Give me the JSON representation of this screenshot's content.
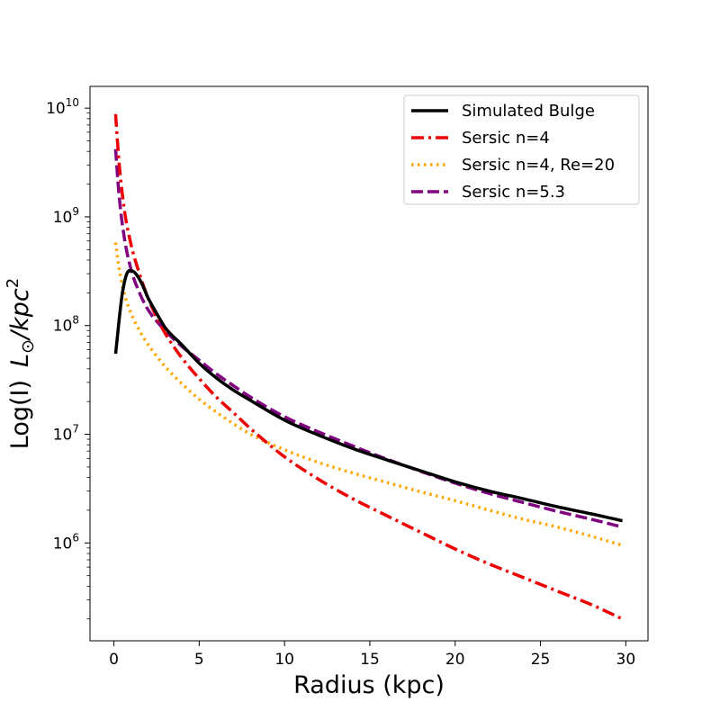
{
  "chart_data": {
    "type": "line",
    "xlabel": "Radius (kpc)",
    "ylabel_prefix": "Log(I)",
    "ylabel_unit_L": "L",
    "ylabel_unit_sub": "⊙",
    "ylabel_unit_rest": "/kpc",
    "ylabel_unit_sup": "2",
    "xlim": [
      -1.4,
      31.3
    ],
    "ylim_log10": [
      5.1,
      10.2
    ],
    "y_scale": "log",
    "grid": false,
    "legend_position": "top-right",
    "x_ticks": [
      0,
      5,
      10,
      15,
      20,
      25,
      30
    ],
    "x_tick_labels": [
      "0",
      "5",
      "10",
      "15",
      "20",
      "25",
      "30"
    ],
    "y_ticks_log10": [
      6,
      7,
      8,
      9,
      10
    ],
    "y_tick_base": "10",
    "y_tick_exps": [
      "6",
      "7",
      "8",
      "9",
      "10"
    ],
    "series": [
      {
        "name": "Simulated Bulge",
        "color": "#000000",
        "dash": "solid",
        "x": [
          0.1,
          0.5,
          0.9,
          1.2,
          1.6,
          2,
          2.5,
          3,
          4,
          5,
          6,
          7,
          8,
          10,
          12,
          14,
          16,
          18,
          20,
          22,
          24,
          26,
          28,
          29.8
        ],
        "y": [
          55000000,
          200000000,
          320000000,
          310000000,
          250000000,
          180000000,
          130000000,
          96000000,
          66000000,
          45000000,
          33000000,
          25500000,
          20500000,
          13500000,
          9800000,
          7400000,
          5800000,
          4600000,
          3650000,
          3000000,
          2550000,
          2150000,
          1850000,
          1600000
        ]
      },
      {
        "name": "Sersic n=4",
        "color": "#ee0000",
        "dash": "dashdot",
        "x": [
          0.1,
          0.3,
          0.6,
          1,
          1.5,
          2,
          2.5,
          3,
          4,
          5,
          6,
          7,
          8,
          10,
          12,
          14,
          16,
          18,
          20,
          22,
          24,
          26,
          28,
          29.8
        ],
        "y": [
          8800000000,
          3200000000,
          1200000000,
          560000000,
          300000000,
          180000000,
          120000000,
          85000000,
          50000000,
          32500000,
          22000000,
          15800000,
          11300000,
          6200000,
          3850000,
          2550000,
          1780000,
          1250000,
          880000,
          640000,
          480000,
          360000,
          270000,
          200000
        ]
      },
      {
        "name": "Sersic n=4, Re=20",
        "color": "#ffa500",
        "dash": "dotted",
        "x": [
          0.1,
          0.3,
          0.6,
          1,
          1.5,
          2,
          3,
          4,
          5,
          6,
          7,
          8,
          10,
          12,
          14,
          16,
          18,
          20,
          22,
          24,
          26,
          28,
          29.8
        ],
        "y": [
          580000000,
          340000000,
          200000000,
          130000000,
          90000000,
          67000000,
          42000000,
          29000000,
          21000000,
          16000000,
          12500000,
          10000000,
          7200000,
          5500000,
          4400000,
          3600000,
          2950000,
          2450000,
          2000000,
          1650000,
          1400000,
          1150000,
          950000
        ]
      },
      {
        "name": "Sersic n=5.3",
        "color": "#800080",
        "dash": "dashed",
        "x": [
          0.1,
          0.3,
          0.6,
          1,
          1.5,
          2,
          3,
          4,
          5,
          6,
          7,
          8,
          10,
          12,
          14,
          16,
          18,
          20,
          22,
          24,
          26,
          28,
          29.8
        ],
        "y": [
          4200000000,
          1600000000,
          660000000,
          330000000,
          200000000,
          140000000,
          90000000,
          64000000,
          48000000,
          36000000,
          28000000,
          22000000,
          14500000,
          10500000,
          7800000,
          5900000,
          4550000,
          3550000,
          2850000,
          2350000,
          1950000,
          1650000,
          1400000
        ]
      }
    ]
  }
}
